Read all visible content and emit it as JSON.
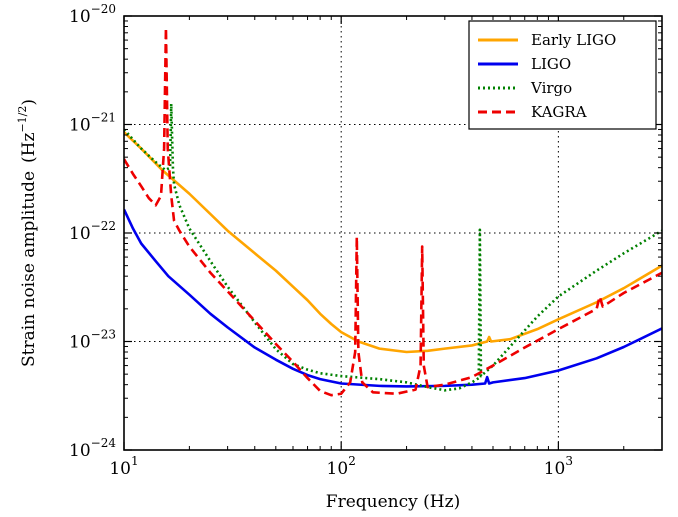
{
  "chart_data": {
    "type": "line",
    "xlabel": "Frequency (Hz)",
    "ylabel": "Strain noise amplitude (Hz^-1/2)",
    "ylabel_main": "Strain noise amplitude",
    "ylabel_unit_base": "(Hz",
    "ylabel_unit_exp": "−1/2",
    "ylabel_unit_close": ")",
    "x_scale": "log",
    "y_scale": "log",
    "xlim": [
      10,
      3000
    ],
    "ylim": [
      1e-24,
      1e-20
    ],
    "x_ticks": [
      {
        "value": 10,
        "base": "10",
        "exp": "1"
      },
      {
        "value": 100,
        "base": "10",
        "exp": "2"
      },
      {
        "value": 1000,
        "base": "10",
        "exp": "3"
      }
    ],
    "y_ticks": [
      {
        "value": 1e-24,
        "base": "10",
        "exp": "−24"
      },
      {
        "value": 1e-23,
        "base": "10",
        "exp": "−23"
      },
      {
        "value": 1e-22,
        "base": "10",
        "exp": "−22"
      },
      {
        "value": 1e-21,
        "base": "10",
        "exp": "−21"
      },
      {
        "value": 1e-20,
        "base": "10",
        "exp": "−20"
      }
    ],
    "grid": true,
    "legend_position": "top-right",
    "series": [
      {
        "name": "Early LIGO",
        "color": "#ffa500",
        "style": "solid",
        "points": [
          [
            10,
            8.5e-22
          ],
          [
            12,
            6e-22
          ],
          [
            15,
            3.8e-22
          ],
          [
            20,
            2.3e-22
          ],
          [
            30,
            1.05e-22
          ],
          [
            40,
            6.5e-23
          ],
          [
            50,
            4.5e-23
          ],
          [
            60,
            3.2e-23
          ],
          [
            70,
            2.4e-23
          ],
          [
            80,
            1.8e-23
          ],
          [
            90,
            1.45e-23
          ],
          [
            100,
            1.22e-23
          ],
          [
            120,
            1e-23
          ],
          [
            150,
            8.6e-24
          ],
          [
            200,
            8e-24
          ],
          [
            250,
            8.2e-24
          ],
          [
            300,
            8.6e-24
          ],
          [
            400,
            9.2e-24
          ],
          [
            470,
            1e-23
          ],
          [
            480,
            1.1e-23
          ],
          [
            490,
            1e-23
          ],
          [
            600,
            1.05e-23
          ],
          [
            800,
            1.3e-23
          ],
          [
            1000,
            1.6e-23
          ],
          [
            1500,
            2.3e-23
          ],
          [
            2000,
            3.1e-23
          ],
          [
            3000,
            5e-23
          ]
        ]
      },
      {
        "name": "LIGO",
        "color": "#0000ee",
        "style": "solid",
        "points": [
          [
            10,
            1.65e-22
          ],
          [
            11,
            1.1e-22
          ],
          [
            12,
            8e-23
          ],
          [
            14,
            5.5e-23
          ],
          [
            16,
            4e-23
          ],
          [
            20,
            2.7e-23
          ],
          [
            25,
            1.8e-23
          ],
          [
            30,
            1.35e-23
          ],
          [
            40,
            8.8e-24
          ],
          [
            50,
            6.8e-24
          ],
          [
            60,
            5.6e-24
          ],
          [
            70,
            4.9e-24
          ],
          [
            80,
            4.5e-24
          ],
          [
            100,
            4.1e-24
          ],
          [
            150,
            3.9e-24
          ],
          [
            200,
            3.85e-24
          ],
          [
            300,
            3.9e-24
          ],
          [
            400,
            4e-24
          ],
          [
            460,
            4.1e-24
          ],
          [
            470,
            4.7e-24
          ],
          [
            480,
            4.1e-24
          ],
          [
            500,
            4.2e-24
          ],
          [
            700,
            4.6e-24
          ],
          [
            1000,
            5.4e-24
          ],
          [
            1500,
            7e-24
          ],
          [
            2000,
            8.9e-24
          ],
          [
            3000,
            1.32e-23
          ]
        ]
      },
      {
        "name": "Virgo",
        "color": "#008000",
        "style": "dotted",
        "points": [
          [
            10,
            9e-22
          ],
          [
            12,
            6e-22
          ],
          [
            14,
            4.5e-22
          ],
          [
            15.5,
            3.8e-22
          ],
          [
            16.3,
            4e-22
          ],
          [
            16.5,
            1.55e-21
          ],
          [
            16.8,
            4e-22
          ],
          [
            17,
            2.8e-22
          ],
          [
            18,
            1.8e-22
          ],
          [
            20,
            1.1e-22
          ],
          [
            25,
            5.5e-23
          ],
          [
            30,
            3.2e-23
          ],
          [
            40,
            1.5e-23
          ],
          [
            50,
            8.5e-24
          ],
          [
            60,
            6.2e-24
          ],
          [
            70,
            5.5e-24
          ],
          [
            80,
            5.1e-24
          ],
          [
            100,
            4.8e-24
          ],
          [
            150,
            4.5e-24
          ],
          [
            200,
            4.2e-24
          ],
          [
            250,
            3.8e-24
          ],
          [
            300,
            3.55e-24
          ],
          [
            350,
            3.7e-24
          ],
          [
            400,
            4.2e-24
          ],
          [
            430,
            4.6e-24
          ],
          [
            435,
            1.07e-22
          ],
          [
            440,
            4.8e-24
          ],
          [
            500,
            6e-24
          ],
          [
            600,
            9e-24
          ],
          [
            800,
            1.7e-23
          ],
          [
            1000,
            2.6e-23
          ],
          [
            1500,
            4.5e-23
          ],
          [
            2000,
            6.5e-23
          ],
          [
            3000,
            1.05e-22
          ]
        ]
      },
      {
        "name": "KAGRA",
        "color": "#ee0000",
        "style": "dashed",
        "points": [
          [
            10,
            4.8e-22
          ],
          [
            11,
            3.5e-22
          ],
          [
            12,
            2.7e-22
          ],
          [
            13,
            2.1e-22
          ],
          [
            14,
            1.8e-22
          ],
          [
            14.8,
            2.2e-22
          ],
          [
            15.3,
            6e-22
          ],
          [
            15.6,
            7.8e-21
          ],
          [
            15.9,
            6e-22
          ],
          [
            16.5,
            2.2e-22
          ],
          [
            17,
            1.3e-22
          ],
          [
            18,
            1.05e-22
          ],
          [
            20,
            7.5e-23
          ],
          [
            25,
            4.3e-23
          ],
          [
            30,
            2.9e-23
          ],
          [
            40,
            1.55e-23
          ],
          [
            50,
            9.5e-24
          ],
          [
            60,
            6.5e-24
          ],
          [
            70,
            4.6e-24
          ],
          [
            80,
            3.5e-24
          ],
          [
            90,
            3.2e-24
          ],
          [
            100,
            3.3e-24
          ],
          [
            110,
            4.2e-24
          ],
          [
            116,
            8e-24
          ],
          [
            118,
            9.2e-23
          ],
          [
            120,
            8e-24
          ],
          [
            125,
            4.2e-24
          ],
          [
            140,
            3.4e-24
          ],
          [
            180,
            3.3e-24
          ],
          [
            220,
            3.6e-24
          ],
          [
            232,
            6e-24
          ],
          [
            236,
            7.5e-23
          ],
          [
            240,
            6e-24
          ],
          [
            250,
            3.8e-24
          ],
          [
            300,
            4e-24
          ],
          [
            400,
            4.7e-24
          ],
          [
            500,
            6e-24
          ],
          [
            700,
            8.8e-24
          ],
          [
            1000,
            1.3e-23
          ],
          [
            1500,
            2e-23
          ],
          [
            1550,
            2.6e-23
          ],
          [
            1600,
            2.1e-23
          ],
          [
            2000,
            2.8e-23
          ],
          [
            3000,
            4.3e-23
          ]
        ]
      }
    ]
  }
}
